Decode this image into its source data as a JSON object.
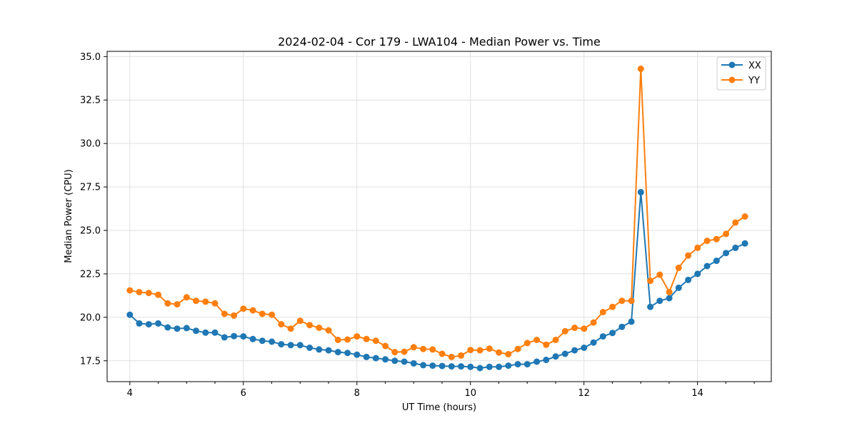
{
  "chart_data": {
    "type": "line",
    "title": "2024-02-04 - Cor 179 - LWA104 - Median Power vs. Time",
    "xlabel": "UT Time (hours)",
    "ylabel": "Median Power (CPU)",
    "xlim": [
      3.6,
      15.3
    ],
    "ylim": [
      16.3,
      35.3
    ],
    "xticks": [
      4,
      6,
      8,
      10,
      12,
      14
    ],
    "xtick_labels": [
      "4",
      "6",
      "8",
      "10",
      "12",
      "14"
    ],
    "yticks": [
      17.5,
      20.0,
      22.5,
      25.0,
      27.5,
      30.0,
      32.5,
      35.0
    ],
    "ytick_labels": [
      "17.5",
      "20.0",
      "22.5",
      "25.0",
      "27.5",
      "30.0",
      "32.5",
      "35.0"
    ],
    "grid": true,
    "legend_position": "top-right",
    "x_start": 4.0,
    "x_step": 0.1667,
    "series": [
      {
        "name": "XX",
        "color": "#1f77b4",
        "values": [
          20.15,
          19.65,
          19.6,
          19.65,
          19.42,
          19.35,
          19.38,
          19.22,
          19.12,
          19.12,
          18.85,
          18.92,
          18.9,
          18.75,
          18.65,
          18.6,
          18.45,
          18.4,
          18.4,
          18.25,
          18.15,
          18.1,
          18.0,
          17.95,
          17.85,
          17.72,
          17.65,
          17.58,
          17.5,
          17.45,
          17.35,
          17.25,
          17.22,
          17.2,
          17.18,
          17.18,
          17.15,
          17.08,
          17.15,
          17.15,
          17.22,
          17.3,
          17.3,
          17.45,
          17.55,
          17.75,
          17.9,
          18.1,
          18.25,
          18.55,
          18.9,
          19.1,
          19.45,
          19.75,
          27.2,
          20.6,
          20.95,
          21.1,
          21.7,
          22.15,
          22.5,
          22.95,
          23.25,
          23.7,
          24.0,
          24.25
        ]
      },
      {
        "name": "YY",
        "color": "#ff7f0e",
        "values": [
          21.55,
          21.45,
          21.4,
          21.3,
          20.8,
          20.75,
          21.15,
          20.95,
          20.9,
          20.8,
          20.2,
          20.1,
          20.5,
          20.4,
          20.2,
          20.15,
          19.6,
          19.35,
          19.8,
          19.55,
          19.4,
          19.25,
          18.7,
          18.72,
          18.9,
          18.75,
          18.65,
          18.35,
          18.0,
          18.02,
          18.28,
          18.18,
          18.15,
          17.9,
          17.72,
          17.8,
          18.12,
          18.1,
          18.2,
          17.98,
          17.88,
          18.18,
          18.52,
          18.7,
          18.42,
          18.7,
          19.2,
          19.4,
          19.35,
          19.7,
          20.3,
          20.6,
          20.95,
          20.95,
          34.3,
          22.1,
          22.45,
          21.45,
          22.85,
          23.55,
          24.0,
          24.4,
          24.5,
          24.8,
          25.45,
          25.8
        ]
      }
    ]
  }
}
